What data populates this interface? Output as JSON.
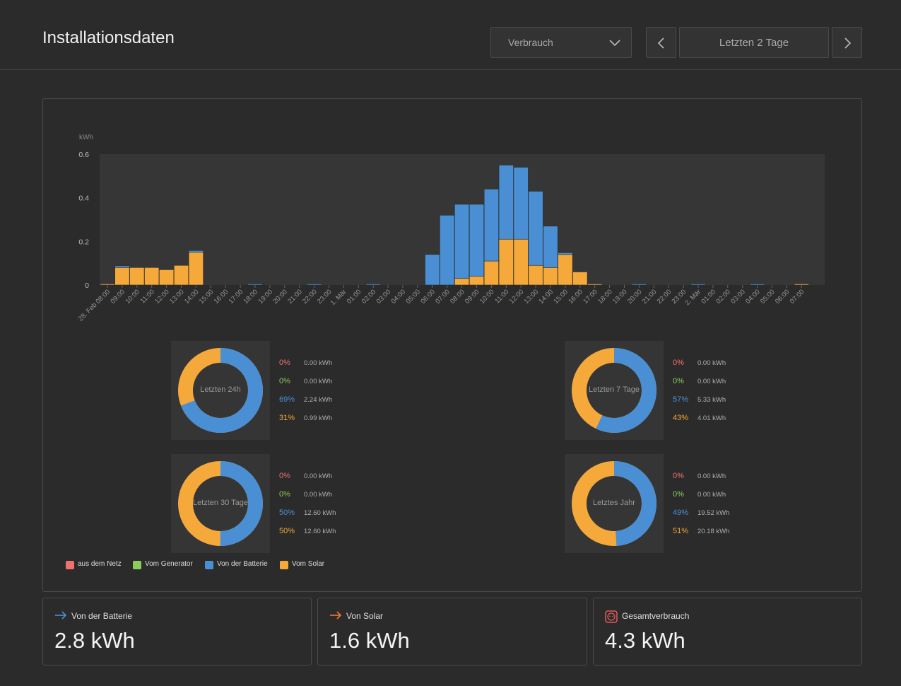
{
  "header": {
    "title": "Installationsdaten",
    "dropdown_value": "Verbrauch",
    "range_label": "Letzten 2 Tage"
  },
  "colors": {
    "netz": "#f07070",
    "generator": "#8ccc5c",
    "batterie": "#4a8fd4",
    "solar": "#f5a93a"
  },
  "chart_data": {
    "type": "bar",
    "stacked": true,
    "ylabel": "kWh",
    "ylim": [
      0,
      0.6
    ],
    "yticks": [
      "0",
      "0.2",
      "0.4",
      "0.6"
    ],
    "categories": [
      "28. Feb 08:00",
      "09:00",
      "10:00",
      "11:00",
      "12:00",
      "13:00",
      "14:00",
      "15:00",
      "16:00",
      "17:00",
      "18:00",
      "19:00",
      "20:00",
      "21:00",
      "22:00",
      "23:00",
      "1. Mär",
      "01:00",
      "02:00",
      "03:00",
      "04:00",
      "05:00",
      "06:00",
      "07:00",
      "08:00",
      "09:00",
      "10:00",
      "11:00",
      "12:00",
      "13:00",
      "14:00",
      "15:00",
      "16:00",
      "17:00",
      "18:00",
      "19:00",
      "20:00",
      "21:00",
      "22:00",
      "23:00",
      "2. Mär",
      "01:00",
      "02:00",
      "03:00",
      "04:00",
      "05:00",
      "06:00",
      "07:00"
    ],
    "series": [
      {
        "name": "Vom Solar",
        "color": "#f5a93a",
        "values": [
          0.005,
          0.08,
          0.08,
          0.08,
          0.07,
          0.09,
          0.15,
          0,
          0,
          0,
          0,
          0,
          0,
          0,
          0,
          0,
          0,
          0,
          0,
          0,
          0,
          0,
          0,
          0,
          0.03,
          0.04,
          0.11,
          0.21,
          0.21,
          0.09,
          0.08,
          0.14,
          0.06,
          0.005,
          0,
          0,
          0,
          0,
          0,
          0,
          0,
          0,
          0,
          0,
          0,
          0,
          0,
          0.005
        ]
      },
      {
        "name": "Von der Batterie",
        "color": "#4a8fd4",
        "values": [
          0,
          0.008,
          0,
          0,
          0,
          0,
          0.008,
          0,
          0,
          0,
          0.005,
          0,
          0,
          0,
          0.005,
          0,
          0,
          0,
          0.005,
          0,
          0,
          0,
          0.14,
          0.32,
          0.34,
          0.33,
          0.33,
          0.34,
          0.33,
          0.34,
          0.19,
          0.008,
          0,
          0,
          0,
          0,
          0.005,
          0,
          0,
          0,
          0.005,
          0,
          0,
          0,
          0.005,
          0,
          0,
          0
        ]
      }
    ]
  },
  "donuts": [
    {
      "label": "Letzten 24h",
      "netz_pct": "0%",
      "netz_kwh": "0.00 kWh",
      "gen_pct": "0%",
      "gen_kwh": "0.00 kWh",
      "bat_pct": "69%",
      "bat_kwh": "2.24 kWh",
      "sol_pct": "31%",
      "sol_kwh": "0.99 kWh",
      "batterie_share": 0.69
    },
    {
      "label": "Letzten 7 Tage",
      "netz_pct": "0%",
      "netz_kwh": "0.00 kWh",
      "gen_pct": "0%",
      "gen_kwh": "0.00 kWh",
      "bat_pct": "57%",
      "bat_kwh": "5.33 kWh",
      "sol_pct": "43%",
      "sol_kwh": "4.01 kWh",
      "batterie_share": 0.57
    },
    {
      "label": "Letzten 30 Tage",
      "netz_pct": "0%",
      "netz_kwh": "0.00 kWh",
      "gen_pct": "0%",
      "gen_kwh": "0.00 kWh",
      "bat_pct": "50%",
      "bat_kwh": "12.60 kWh",
      "sol_pct": "50%",
      "sol_kwh": "12.60 kWh",
      "batterie_share": 0.5
    },
    {
      "label": "Letztes Jahr",
      "netz_pct": "0%",
      "netz_kwh": "0.00 kWh",
      "gen_pct": "0%",
      "gen_kwh": "0.00 kWh",
      "bat_pct": "49%",
      "bat_kwh": "19.52 kWh",
      "sol_pct": "51%",
      "sol_kwh": "20.18 kWh",
      "batterie_share": 0.49
    }
  ],
  "legend": [
    "aus dem Netz",
    "Vom Generator",
    "Von der Batterie",
    "Vom Solar"
  ],
  "summary": [
    {
      "title": "Von der Batterie",
      "value": "2.8 kWh",
      "icon": "arrow-right-icon"
    },
    {
      "title": "Von Solar",
      "value": "1.6 kWh",
      "icon": "arrow-right-icon"
    },
    {
      "title": "Gesamtverbrauch",
      "value": "4.3 kWh",
      "icon": "outlet-icon"
    }
  ]
}
